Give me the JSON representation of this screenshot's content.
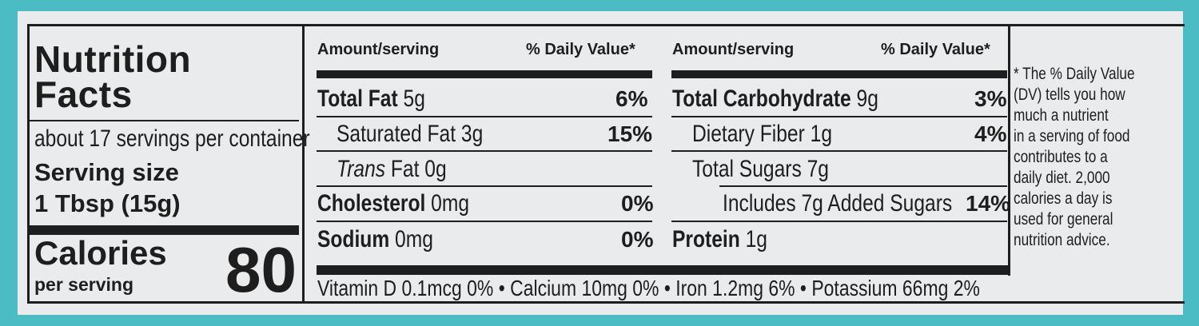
{
  "facts": {
    "title_line1": "Nutrition",
    "title_line2": "Facts",
    "servings_per_container": "about 17 servings per container",
    "serving_size_label": "Serving size",
    "serving_size_value": "1 Tbsp (15g)",
    "calories_label": "Calories",
    "per_serving": "per serving",
    "calories_value": "80"
  },
  "left_column": {
    "header_amount": "Amount/serving",
    "header_dv": "% Daily Value*",
    "rows": [
      {
        "name": "Total Fat",
        "amount": "5g",
        "dv": "6%"
      },
      {
        "name": "Saturated Fat",
        "amount": "3g",
        "dv": "15%"
      },
      {
        "name": "Trans",
        "name_suffix": "Fat",
        "amount": "0g",
        "dv": ""
      },
      {
        "name": "Cholesterol",
        "amount": "0mg",
        "dv": "0%"
      },
      {
        "name": "Sodium",
        "amount": "0mg",
        "dv": "0%"
      }
    ]
  },
  "right_column": {
    "header_amount": "Amount/serving",
    "header_dv": "% Daily Value*",
    "rows": [
      {
        "name": "Total Carbohydrate",
        "amount": "9g",
        "dv": "3%"
      },
      {
        "name": "Dietary Fiber",
        "amount": "1g",
        "dv": "4%"
      },
      {
        "name": "Total Sugars",
        "amount": "7g",
        "dv": ""
      },
      {
        "name": "Includes 7g Added Sugars",
        "amount": "",
        "dv": "14%"
      },
      {
        "name": "Protein",
        "amount": "1g",
        "dv": ""
      }
    ]
  },
  "vitamins_line": "Vitamin D 0.1mcg 0% • Calcium 10mg 0% • Iron 1.2mg 6% • Potassium 66mg 2%",
  "footnote_lines": [
    "* The % Daily Value",
    "(DV) tells you how",
    "much a nutrient",
    "in a serving of food",
    "contributes to a",
    "daily diet. 2,000",
    "calories a day is",
    "used for general",
    "nutrition advice."
  ],
  "colors": {
    "background": "#4cbcc4",
    "label": "#e9ebec",
    "ink": "#1e1e1e"
  }
}
